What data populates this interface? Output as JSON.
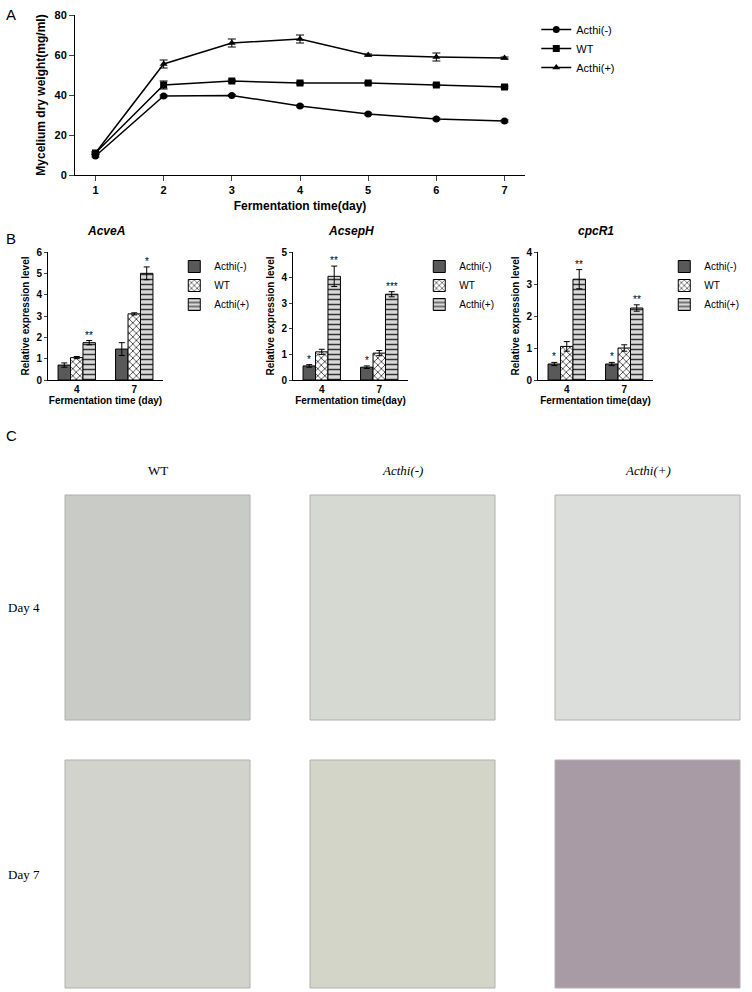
{
  "panel_labels": [
    "A",
    "B",
    "C"
  ],
  "chart_data": [
    {
      "type": "line",
      "x": [
        1,
        2,
        3,
        4,
        5,
        6,
        7
      ],
      "xlabel": "Fermentation time(day)",
      "ylabel": "Mycelium dry weight(mg/ml)",
      "xlim": [
        0.7,
        7.3
      ],
      "xticks": [
        1,
        2,
        3,
        4,
        5,
        6,
        7
      ],
      "ylim": [
        0,
        80
      ],
      "yticks": [
        0,
        20,
        40,
        60,
        80
      ],
      "legend": "right",
      "series": [
        {
          "name": "Acthi(-)",
          "color": "#000000",
          "marker": "circle",
          "values": [
            9.5,
            39.5,
            39.8,
            34.5,
            30.5,
            28,
            27
          ],
          "errors": [
            0.5,
            0.5,
            0.5,
            0.5,
            0.5,
            0.5,
            0.5
          ]
        },
        {
          "name": "WT",
          "color": "#000000",
          "marker": "square",
          "values": [
            11,
            45,
            47,
            46,
            46,
            45,
            44
          ],
          "errors": [
            0.5,
            2,
            0.5,
            0.5,
            0.5,
            0.5,
            0.5
          ]
        },
        {
          "name": "Acthi(+)",
          "color": "#000000",
          "marker": "triangle-up",
          "values": [
            11,
            55.5,
            66,
            68,
            60,
            59,
            58.5
          ],
          "errors": [
            0.5,
            2,
            2,
            2,
            0.5,
            2,
            0.5
          ]
        }
      ]
    },
    {
      "type": "bar",
      "title": "AcveA",
      "categories": [
        "4",
        "7"
      ],
      "xlabel": "Fermentation time (day)",
      "ylabel": "Relative expression level",
      "ylim": [
        0,
        6
      ],
      "yticks": [
        0,
        1,
        2,
        3,
        4,
        5,
        6
      ],
      "legend": "right",
      "series": [
        {
          "name": "Acthi(-)",
          "color": "#595959",
          "marker": "solid",
          "values": [
            0.7,
            1.45
          ],
          "errors": [
            0.1,
            0.3
          ],
          "significance": [
            null,
            null
          ]
        },
        {
          "name": "WT",
          "color": "#ffffff",
          "marker": "crosshatch",
          "values": [
            1.05,
            3.1
          ],
          "errors": [
            0.05,
            0.05
          ],
          "significance": [
            null,
            null
          ]
        },
        {
          "name": "Acthi(+)",
          "color": "#d9d9d9",
          "marker": "hlines",
          "values": [
            1.75,
            5.0
          ],
          "errors": [
            0.1,
            0.3
          ],
          "significance": [
            "**",
            "*"
          ]
        }
      ]
    },
    {
      "type": "bar",
      "title": "AcsepH",
      "categories": [
        "4",
        "7"
      ],
      "xlabel": "Fermentation time(day)",
      "ylabel": "Relative expression level",
      "ylim": [
        0,
        5
      ],
      "yticks": [
        0,
        1,
        2,
        3,
        4,
        5
      ],
      "legend": "right",
      "series": [
        {
          "name": "Acthi(-)",
          "color": "#595959",
          "marker": "solid",
          "values": [
            0.55,
            0.5
          ],
          "errors": [
            0.05,
            0.05
          ],
          "significance": [
            "*",
            "*"
          ]
        },
        {
          "name": "WT",
          "color": "#ffffff",
          "marker": "crosshatch",
          "values": [
            1.1,
            1.05
          ],
          "errors": [
            0.1,
            0.1
          ],
          "significance": [
            null,
            null
          ]
        },
        {
          "name": "Acthi(+)",
          "color": "#d9d9d9",
          "marker": "hlines",
          "values": [
            4.05,
            3.35
          ],
          "errors": [
            0.4,
            0.1
          ],
          "significance": [
            "**",
            "***"
          ]
        }
      ]
    },
    {
      "type": "bar",
      "title": "cpcR1",
      "categories": [
        "4",
        "7"
      ],
      "xlabel": "Fermentation time(day)",
      "ylabel": "Relative expression level",
      "ylim": [
        0,
        4
      ],
      "yticks": [
        0,
        1,
        2,
        3,
        4
      ],
      "legend": "right",
      "series": [
        {
          "name": "Acthi(-)",
          "color": "#595959",
          "marker": "solid",
          "values": [
            0.5,
            0.5
          ],
          "errors": [
            0.05,
            0.05
          ],
          "significance": [
            "*",
            "*"
          ]
        },
        {
          "name": "WT",
          "color": "#ffffff",
          "marker": "crosshatch",
          "values": [
            1.05,
            1.0
          ],
          "errors": [
            0.15,
            0.1
          ],
          "significance": [
            null,
            null
          ]
        },
        {
          "name": "Acthi(+)",
          "color": "#d9d9d9",
          "marker": "hlines",
          "values": [
            3.15,
            2.25
          ],
          "errors": [
            0.3,
            0.1
          ],
          "significance": [
            "**",
            "**"
          ]
        }
      ]
    }
  ],
  "micrographs": {
    "columns": [
      "WT",
      "Acthi(-)",
      "Acthi(+)"
    ],
    "rows": [
      "Day 4",
      "Day 7"
    ]
  }
}
